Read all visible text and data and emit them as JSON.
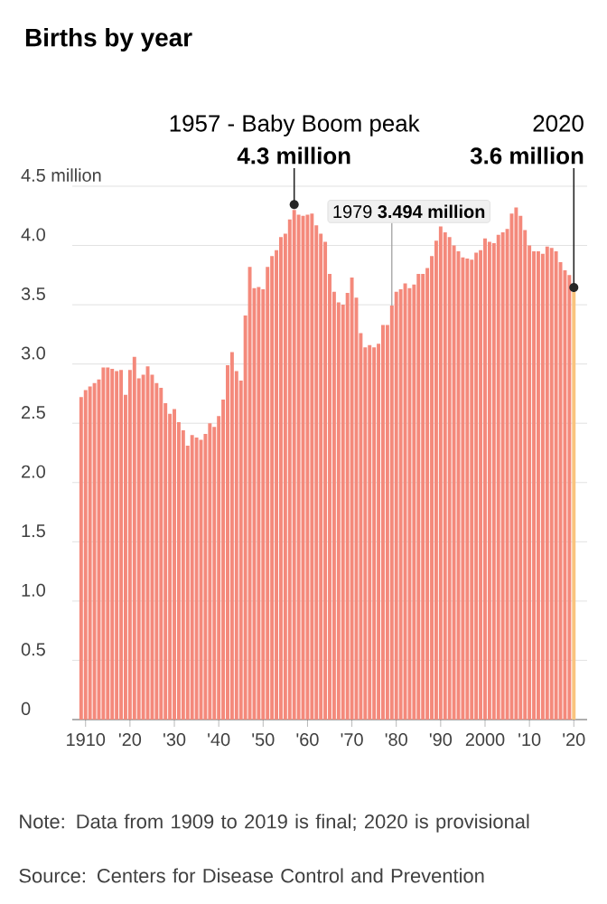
{
  "chart_data": {
    "type": "bar",
    "title": "Births by year",
    "x": [
      1909,
      1910,
      1911,
      1912,
      1913,
      1914,
      1915,
      1916,
      1917,
      1918,
      1919,
      1920,
      1921,
      1922,
      1923,
      1924,
      1925,
      1926,
      1927,
      1928,
      1929,
      1930,
      1931,
      1932,
      1933,
      1934,
      1935,
      1936,
      1937,
      1938,
      1939,
      1940,
      1941,
      1942,
      1943,
      1944,
      1945,
      1946,
      1947,
      1948,
      1949,
      1950,
      1951,
      1952,
      1953,
      1954,
      1955,
      1956,
      1957,
      1958,
      1959,
      1960,
      1961,
      1962,
      1963,
      1964,
      1965,
      1966,
      1967,
      1968,
      1969,
      1970,
      1971,
      1972,
      1973,
      1974,
      1975,
      1976,
      1977,
      1978,
      1979,
      1980,
      1981,
      1982,
      1983,
      1984,
      1985,
      1986,
      1987,
      1988,
      1989,
      1990,
      1991,
      1992,
      1993,
      1994,
      1995,
      1996,
      1997,
      1998,
      1999,
      2000,
      2001,
      2002,
      2003,
      2004,
      2005,
      2006,
      2007,
      2008,
      2009,
      2010,
      2011,
      2012,
      2013,
      2014,
      2015,
      2016,
      2017,
      2018,
      2019,
      2020
    ],
    "values": [
      2.72,
      2.78,
      2.81,
      2.84,
      2.87,
      2.97,
      2.97,
      2.96,
      2.94,
      2.95,
      2.74,
      2.95,
      3.06,
      2.88,
      2.91,
      2.98,
      2.91,
      2.84,
      2.8,
      2.67,
      2.58,
      2.62,
      2.51,
      2.44,
      2.31,
      2.4,
      2.38,
      2.36,
      2.41,
      2.5,
      2.47,
      2.56,
      2.7,
      2.99,
      3.1,
      2.94,
      2.86,
      3.41,
      3.82,
      3.64,
      3.65,
      3.63,
      3.82,
      3.91,
      3.96,
      4.07,
      4.1,
      4.22,
      4.3,
      4.26,
      4.25,
      4.26,
      4.27,
      4.17,
      4.1,
      4.03,
      3.76,
      3.61,
      3.52,
      3.5,
      3.6,
      3.73,
      3.56,
      3.26,
      3.14,
      3.16,
      3.14,
      3.17,
      3.33,
      3.33,
      3.494,
      3.61,
      3.63,
      3.68,
      3.64,
      3.67,
      3.76,
      3.76,
      3.81,
      3.91,
      4.04,
      4.16,
      4.11,
      4.07,
      4.0,
      3.95,
      3.9,
      3.89,
      3.88,
      3.94,
      3.96,
      4.06,
      4.03,
      4.02,
      4.09,
      4.11,
      4.14,
      4.27,
      4.32,
      4.25,
      4.13,
      4.0,
      3.95,
      3.95,
      3.93,
      3.99,
      3.98,
      3.95,
      3.86,
      3.79,
      3.75,
      3.61
    ],
    "colors": [
      "#f4897b",
      "#f4897b",
      "#f4897b",
      "#f4897b",
      "#f4897b",
      "#f4897b",
      "#f4897b",
      "#f4897b",
      "#f4897b",
      "#f4897b",
      "#f4897b",
      "#f4897b",
      "#f4897b",
      "#f4897b",
      "#f4897b",
      "#f4897b",
      "#f4897b",
      "#f4897b",
      "#f4897b",
      "#f4897b",
      "#f4897b",
      "#f4897b",
      "#f4897b",
      "#f4897b",
      "#f4897b",
      "#f4897b",
      "#f4897b",
      "#f4897b",
      "#f4897b",
      "#f4897b",
      "#f4897b",
      "#f4897b",
      "#f4897b",
      "#f4897b",
      "#f4897b",
      "#f4897b",
      "#f4897b",
      "#f4897b",
      "#f4897b",
      "#f4897b",
      "#f4897b",
      "#f4897b",
      "#f4897b",
      "#f4897b",
      "#f4897b",
      "#f4897b",
      "#f4897b",
      "#f4897b",
      "#f4897b",
      "#f4897b",
      "#f4897b",
      "#f4897b",
      "#f4897b",
      "#f4897b",
      "#f4897b",
      "#f4897b",
      "#f4897b",
      "#f4897b",
      "#f4897b",
      "#f4897b",
      "#f4897b",
      "#f4897b",
      "#f4897b",
      "#f4897b",
      "#f4897b",
      "#f4897b",
      "#f4897b",
      "#f4897b",
      "#f4897b",
      "#f4897b",
      "#f4897b",
      "#f4897b",
      "#f4897b",
      "#f4897b",
      "#f4897b",
      "#f4897b",
      "#f4897b",
      "#f4897b",
      "#f4897b",
      "#f4897b",
      "#f4897b",
      "#f4897b",
      "#f4897b",
      "#f4897b",
      "#f4897b",
      "#f4897b",
      "#f4897b",
      "#f4897b",
      "#f4897b",
      "#f4897b",
      "#f4897b",
      "#f4897b",
      "#f4897b",
      "#f4897b",
      "#f4897b",
      "#f4897b",
      "#f4897b",
      "#f4897b",
      "#f4897b",
      "#f4897b",
      "#f4897b",
      "#f4897b",
      "#f4897b",
      "#f4897b",
      "#f4897b",
      "#f4897b",
      "#f4897b",
      "#f4897b",
      "#f4897b",
      "#f4897b",
      "#f4897b",
      "#f9c47e"
    ],
    "xlim": [
      1907,
      2023
    ],
    "xticks": [
      {
        "value": 1910,
        "label": "1910"
      },
      {
        "value": 1920,
        "label": "'20"
      },
      {
        "value": 1930,
        "label": "'30"
      },
      {
        "value": 1940,
        "label": "'40"
      },
      {
        "value": 1950,
        "label": "'50"
      },
      {
        "value": 1960,
        "label": "'60"
      },
      {
        "value": 1970,
        "label": "'70"
      },
      {
        "value": 1980,
        "label": "'80"
      },
      {
        "value": 1990,
        "label": "'90"
      },
      {
        "value": 2000,
        "label": "2000"
      },
      {
        "value": 2010,
        "label": "'10"
      },
      {
        "value": 2020,
        "label": "'20"
      }
    ],
    "ylim": [
      0,
      4.5
    ],
    "yticks": [
      0,
      0.5,
      {
        "value": 1,
        "label": "1.0"
      },
      1.5,
      {
        "value": 2,
        "label": "2.0"
      },
      2.5,
      {
        "value": 3,
        "label": "3.0"
      },
      3.5,
      {
        "value": 4,
        "label": "4.0"
      },
      {
        "value": 4.5,
        "label": "4.5 million"
      }
    ],
    "grid": "y",
    "annotations": [
      "1957 - Baby Boom peak",
      {
        "text": "4.3 million",
        "x": 1957,
        "y": 4.3
      },
      "2020",
      {
        "text": "3.6 million",
        "x": 2020,
        "y": 3.6
      },
      {
        "text": "1979  **3.494 million**",
        "x": 1979,
        "y": 3.494
      },
      "Note: Data from 1909 to 2019 is final; 2020 is provisional",
      "Source: Centers for Disease Control and Prevention"
    ]
  }
}
